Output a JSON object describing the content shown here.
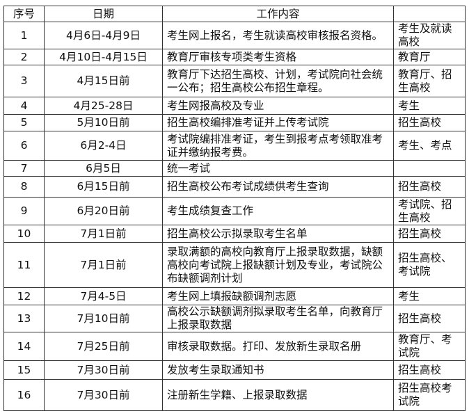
{
  "table": {
    "header": [
      "序号",
      "日期",
      "工作内容"
    ],
    "rows": [
      {
        "no": "1",
        "date": "4月6日-4月9日",
        "content": "考生网上报名，考生就读高校审核报名资格。",
        "party": "考生及就读高校"
      },
      {
        "no": "2",
        "date": "4月10日-4月15日",
        "content": "教育厅审核专项类考生资格",
        "party": "教育厅"
      },
      {
        "no": "3",
        "date": "4月15日前",
        "content": "教育厅下达招生高校、计划，考试院向社会统一公布；招生高校公布招生章程。",
        "party": "教育厅、招生高校"
      },
      {
        "no": "4",
        "date": "4月25-28日",
        "content": "考生网报高校及专业",
        "party": "考生"
      },
      {
        "no": "5",
        "date": "5月10日前",
        "content": "招生高校编排准考证并上传考试院",
        "party": "招生高校"
      },
      {
        "no": "6",
        "date": "6月2-4日",
        "content": "考试院编排准考证，考生到报考点考领取准考证并缴纳报考费。",
        "party": "考生、考点"
      },
      {
        "no": "7",
        "date": "6月5日",
        "content": "统一考试"
      },
      {
        "no": "8",
        "date": "6月15日前",
        "content": "招生高校公布考试成绩供考生查询",
        "party": "招生高校"
      },
      {
        "no": "9",
        "date": "6月20日前",
        "content": "考生成绩复查工作",
        "party": "考试院、招生高校"
      },
      {
        "no": "10",
        "date": "7月1日前",
        "content": "招生高校公示拟录取考生名单",
        "party": "招生高校"
      },
      {
        "no": "11",
        "date": "7月1日前",
        "content": "录取满额的高校向教育厅上报录取数据，缺额高校向考试院上报缺额计划及专业，考试院公布缺额调剂计划",
        "party": "招生高校、考试院"
      },
      {
        "no": "12",
        "date": "7月4-5日",
        "content": "考生网上填报缺额调剂志愿",
        "party": "考生"
      },
      {
        "no": "13",
        "date": "7月10日前",
        "content": "高校公示缺额调剂拟录取考生名单，向教育厅上报录取数据",
        "party": "招生高校"
      },
      {
        "no": "14",
        "date": "7月25日前",
        "content": "审核录取数据。打印、发放新生录取名册",
        "party": "教育厅、考试院"
      },
      {
        "no": "15",
        "date": "7月30日前",
        "content": "发放考生录取通知书",
        "party": "招生高校"
      },
      {
        "no": "16",
        "date": "7月30日前",
        "content": "注册新生学籍、上报录取数据",
        "party": "招生高校考试院"
      }
    ]
  }
}
